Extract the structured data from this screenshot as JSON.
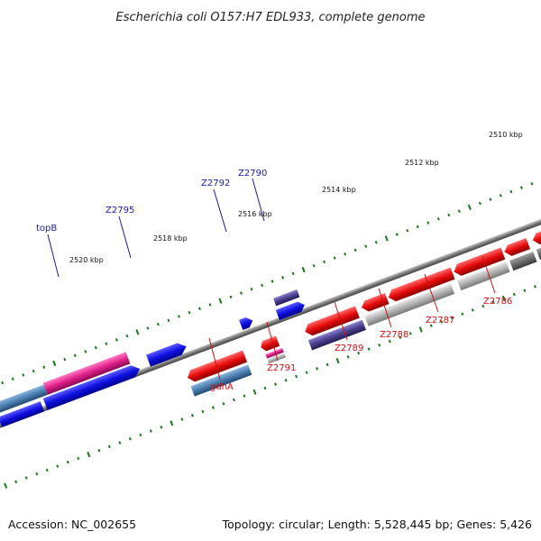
{
  "title": "Escherichia coli O157:H7 EDL933, complete genome",
  "footer": {
    "accession": "Accession: NC_002655",
    "summary": "Topology: circular; Length: 5,528,445 bp; Genes: 5,426"
  },
  "kbp_labels": [
    "2510 kbp",
    "2512 kbp",
    "2514 kbp",
    "2516 kbp",
    "2518 kbp",
    "2520 kbp"
  ],
  "genes_top": [
    {
      "name": "topB",
      "color": "#1a1aa6"
    },
    {
      "name": "Z2795",
      "color": "#1a1aa6"
    },
    {
      "name": "Z2792",
      "color": "#1a1aa6"
    },
    {
      "name": "Z2790",
      "color": "#1a1aa6"
    }
  ],
  "genes_bottom": [
    {
      "name": "gdhA",
      "color": "#cc1111"
    },
    {
      "name": "Z2791",
      "color": "#cc1111"
    },
    {
      "name": "Z2789",
      "color": "#cc1111"
    },
    {
      "name": "Z2788",
      "color": "#cc1111"
    },
    {
      "name": "Z2787",
      "color": "#cc1111"
    },
    {
      "name": "Z2786",
      "color": "#cc1111"
    }
  ],
  "colors": {
    "forward_gene": "#1010e0",
    "reverse_gene": "#e01010",
    "rrna_pink": "#e0208a",
    "steel_blue": "#4a7fb0",
    "purple": "#4a3f8f",
    "grey": "#9a9a9a",
    "tick_green": "#1a7a1a"
  }
}
